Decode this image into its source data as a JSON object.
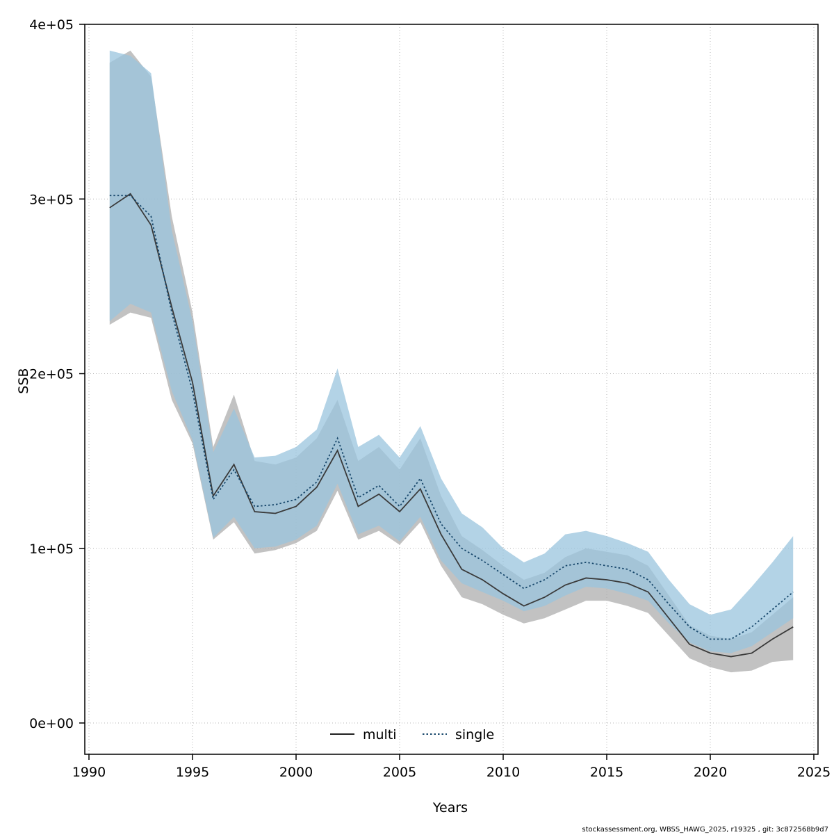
{
  "figure": {
    "ylabel": "SSB",
    "xlabel": "Years",
    "footer": "stockassessment.org, WBSS_HAWG_2025, r19325 , git: 3c872568b9d7"
  },
  "chart_data": {
    "type": "line",
    "title": "",
    "xlabel": "Years",
    "ylabel": "SSB",
    "xlim": [
      1990,
      2025
    ],
    "ylim": [
      0,
      400000
    ],
    "grid": true,
    "legend_position": "bottom-center",
    "x_ticks": [
      1990,
      1995,
      2000,
      2005,
      2010,
      2015,
      2020,
      2025
    ],
    "y_ticks": [
      0,
      100000,
      200000,
      300000,
      400000
    ],
    "y_tick_labels": [
      "0e+00",
      "1e+05",
      "2e+05",
      "3e+05",
      "4e+05"
    ],
    "x": [
      1991,
      1992,
      1993,
      1994,
      1995,
      1996,
      1997,
      1998,
      1999,
      2000,
      2001,
      2002,
      2003,
      2004,
      2005,
      2006,
      2007,
      2008,
      2009,
      2010,
      2011,
      2012,
      2013,
      2014,
      2015,
      2016,
      2017,
      2018,
      2019,
      2020,
      2021,
      2022,
      2023,
      2024
    ],
    "series": [
      {
        "name": "multi",
        "style": "solid",
        "color": "#3a3a3a",
        "band_color": "#adadad",
        "band_opacity": 0.75,
        "values": [
          295000,
          303000,
          285000,
          238000,
          195000,
          130000,
          148000,
          121000,
          120000,
          124000,
          135000,
          156000,
          124000,
          131000,
          121000,
          134000,
          108000,
          88000,
          82000,
          74000,
          67000,
          72000,
          79000,
          83000,
          82000,
          80000,
          75000,
          60000,
          45000,
          40000,
          38000,
          40000,
          48000,
          55000
        ],
        "lower": [
          228000,
          235000,
          232000,
          185000,
          160000,
          105000,
          115000,
          97000,
          99000,
          103000,
          110000,
          133000,
          105000,
          110000,
          102000,
          115000,
          90000,
          72000,
          68000,
          62000,
          57000,
          60000,
          65000,
          70000,
          70000,
          67000,
          63000,
          50000,
          37000,
          32000,
          29000,
          30000,
          35000,
          36000
        ],
        "upper": [
          378000,
          385000,
          370000,
          290000,
          235000,
          158000,
          188000,
          150000,
          148000,
          152000,
          163000,
          185000,
          150000,
          158000,
          145000,
          163000,
          130000,
          107000,
          99000,
          90000,
          82000,
          86000,
          95000,
          100000,
          98000,
          96000,
          90000,
          73000,
          56000,
          50000,
          48000,
          52000,
          62000,
          72000
        ]
      },
      {
        "name": "single",
        "style": "dotted",
        "color": "#17476b",
        "band_color": "#9ac4dd",
        "band_opacity": 0.75,
        "values": [
          302000,
          302000,
          290000,
          235000,
          190000,
          128000,
          145000,
          124000,
          125000,
          128000,
          138000,
          163000,
          129000,
          136000,
          124000,
          140000,
          114000,
          100000,
          93000,
          85000,
          77000,
          82000,
          90000,
          92000,
          90000,
          88000,
          82000,
          68000,
          55000,
          48000,
          48000,
          55000,
          65000,
          75000
        ],
        "lower": [
          230000,
          240000,
          235000,
          190000,
          162000,
          106000,
          118000,
          100000,
          101000,
          105000,
          113000,
          137000,
          108000,
          113000,
          104000,
          118000,
          93000,
          80000,
          75000,
          70000,
          64000,
          67000,
          73000,
          78000,
          77000,
          74000,
          70000,
          57000,
          46000,
          41000,
          40000,
          44000,
          52000,
          60000
        ],
        "upper": [
          385000,
          382000,
          372000,
          282000,
          230000,
          155000,
          180000,
          152000,
          153000,
          158000,
          168000,
          203000,
          158000,
          165000,
          152000,
          170000,
          140000,
          120000,
          112000,
          100000,
          92000,
          97000,
          108000,
          110000,
          107000,
          103000,
          98000,
          82000,
          68000,
          62000,
          65000,
          78000,
          92000,
          107000
        ]
      }
    ]
  }
}
